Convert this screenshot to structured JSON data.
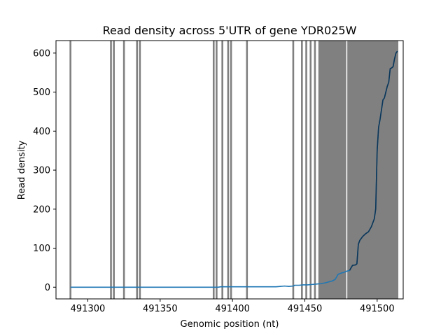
{
  "chart_data": {
    "type": "line",
    "title": "Read density across 5'UTR of gene YDR025W",
    "xlabel": "Genomic position (nt)",
    "ylabel": "Read density",
    "xlim": [
      491278,
      491518
    ],
    "ylim": [
      -30,
      632
    ],
    "xticks": [
      491300,
      491350,
      491400,
      491450,
      491500
    ],
    "yticks": [
      0,
      100,
      200,
      300,
      400,
      500,
      600
    ],
    "grid": false,
    "series": [
      {
        "color": "#1f77b4",
        "points": [
          [
            491288,
            0
          ],
          [
            491300,
            0
          ],
          [
            491320,
            0
          ],
          [
            491340,
            0
          ],
          [
            491360,
            0
          ],
          [
            491380,
            0
          ],
          [
            491390,
            0
          ],
          [
            491392,
            1
          ],
          [
            491400,
            1
          ],
          [
            491410,
            1
          ],
          [
            491420,
            1
          ],
          [
            491430,
            1
          ],
          [
            491433,
            2
          ],
          [
            491436,
            3
          ],
          [
            491439,
            2
          ],
          [
            491442,
            3
          ],
          [
            491443,
            5
          ],
          [
            491446,
            5
          ],
          [
            491449,
            6
          ],
          [
            491452,
            6
          ],
          [
            491455,
            7
          ],
          [
            491458,
            8
          ],
          [
            491461,
            9
          ],
          [
            491464,
            11
          ],
          [
            491466,
            13
          ],
          [
            491469,
            16
          ],
          [
            491471,
            20
          ],
          [
            491473,
            33
          ],
          [
            491475,
            36
          ],
          [
            491477,
            38
          ],
          [
            491479,
            41
          ],
          [
            491481,
            43
          ],
          [
            491482,
            50
          ],
          [
            491483,
            56
          ],
          [
            491485,
            57
          ],
          [
            491486,
            60
          ],
          [
            491487,
            110
          ],
          [
            491488,
            120
          ],
          [
            491490,
            130
          ],
          [
            491492,
            137
          ],
          [
            491494,
            142
          ],
          [
            491496,
            155
          ],
          [
            491498,
            175
          ],
          [
            491499,
            200
          ],
          [
            491500,
            350
          ],
          [
            491501,
            410
          ],
          [
            491502,
            430
          ],
          [
            491503,
            455
          ],
          [
            491504,
            480
          ],
          [
            491505,
            485
          ],
          [
            491506,
            500
          ],
          [
            491507,
            515
          ],
          [
            491508,
            525
          ],
          [
            491509,
            560
          ],
          [
            491510,
            562
          ],
          [
            491511,
            565
          ],
          [
            491512,
            585
          ],
          [
            491513,
            600
          ],
          [
            491514,
            605
          ]
        ]
      }
    ],
    "vlines": [
      491288,
      491316,
      491318,
      491325,
      491334,
      491336,
      491387,
      491389,
      491393,
      491397,
      491399,
      491410,
      491442,
      491448,
      491451,
      491454,
      491457,
      491460,
      491461,
      491462,
      491463,
      491464,
      491465,
      491466,
      491467,
      491468,
      491469,
      491470,
      491471,
      491472,
      491473,
      491474,
      491475,
      491476,
      491477,
      491478,
      491480,
      491481,
      491482,
      491483,
      491484,
      491485,
      491486,
      491487,
      491488,
      491489,
      491490,
      491491,
      491492,
      491493,
      491494,
      491495,
      491496,
      491497,
      491498,
      491499,
      491500,
      491501,
      491502,
      491503,
      491504,
      491505,
      491506,
      491507,
      491508,
      491509,
      491510,
      491511,
      491512,
      491513,
      491514
    ],
    "vline_color": "#808080",
    "line_color_over_shade": "#0d3556"
  }
}
